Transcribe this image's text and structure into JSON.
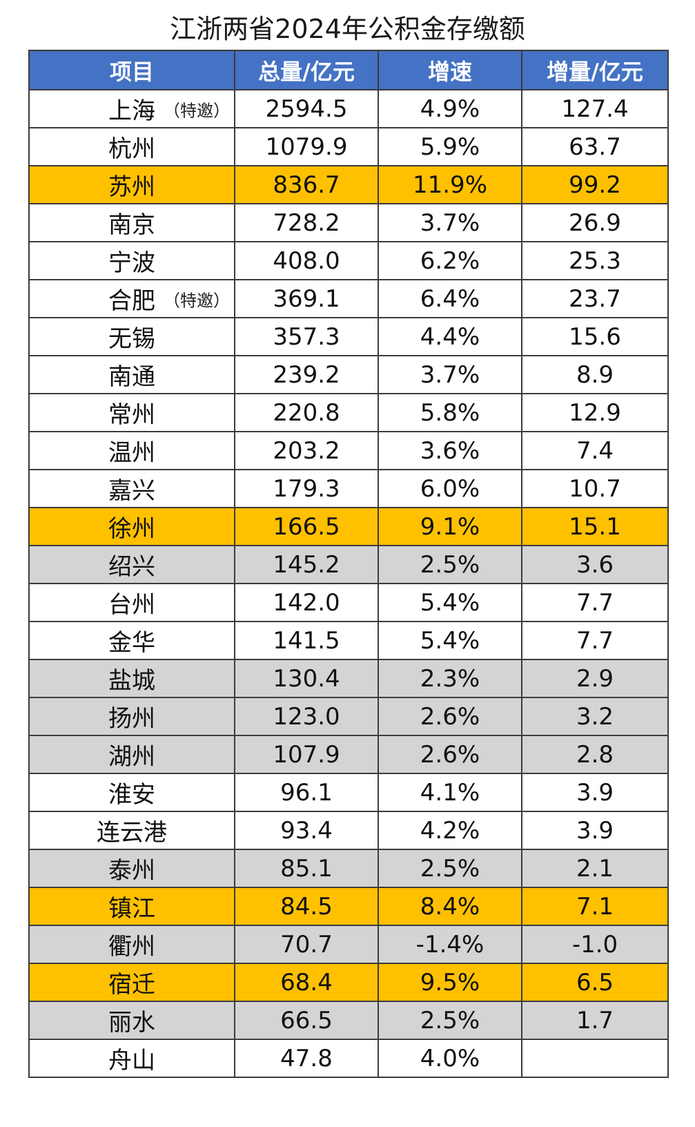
{
  "title": "江浙两省2024年公积金存缴额",
  "headers": [
    "项目",
    "总量/亿元",
    "增速",
    "增量/亿元"
  ],
  "rows": [
    {
      "name": "上海",
      "note": "（特邀）",
      "total": "2594.5",
      "growth": "4.9%",
      "increase": "127.4",
      "highlight": "white"
    },
    {
      "name": "杭州",
      "note": "",
      "total": "1079.9",
      "growth": "5.9%",
      "increase": "63.7",
      "highlight": "white"
    },
    {
      "name": "苏州",
      "note": "",
      "total": "836.7",
      "growth": "11.9%",
      "increase": "99.2",
      "highlight": "orange"
    },
    {
      "name": "南京",
      "note": "",
      "total": "728.2",
      "growth": "3.7%",
      "increase": "26.9",
      "highlight": "white"
    },
    {
      "name": "宁波",
      "note": "",
      "total": "408.0",
      "growth": "6.2%",
      "increase": "25.3",
      "highlight": "white"
    },
    {
      "name": "合肥",
      "note": "（特邀）",
      "total": "369.1",
      "growth": "6.4%",
      "increase": "23.7",
      "highlight": "white"
    },
    {
      "name": "无锡",
      "note": "",
      "total": "357.3",
      "growth": "4.4%",
      "increase": "15.6",
      "highlight": "white"
    },
    {
      "name": "南通",
      "note": "",
      "total": "239.2",
      "growth": "3.7%",
      "increase": "8.9",
      "highlight": "white"
    },
    {
      "name": "常州",
      "note": "",
      "total": "220.8",
      "growth": "5.8%",
      "increase": "12.9",
      "highlight": "white"
    },
    {
      "name": "温州",
      "note": "",
      "total": "203.2",
      "growth": "3.6%",
      "increase": "7.4",
      "highlight": "white"
    },
    {
      "name": "嘉兴",
      "note": "",
      "total": "179.3",
      "growth": "6.0%",
      "increase": "10.7",
      "highlight": "white"
    },
    {
      "name": "徐州",
      "note": "",
      "total": "166.5",
      "growth": "9.1%",
      "increase": "15.1",
      "highlight": "orange"
    },
    {
      "name": "绍兴",
      "note": "",
      "total": "145.2",
      "growth": "2.5%",
      "increase": "3.6",
      "highlight": "gray"
    },
    {
      "name": "台州",
      "note": "",
      "total": "142.0",
      "growth": "5.4%",
      "increase": "7.7",
      "highlight": "white"
    },
    {
      "name": "金华",
      "note": "",
      "total": "141.5",
      "growth": "5.4%",
      "increase": "7.7",
      "highlight": "white"
    },
    {
      "name": "盐城",
      "note": "",
      "total": "130.4",
      "growth": "2.3%",
      "increase": "2.9",
      "highlight": "gray"
    },
    {
      "name": "扬州",
      "note": "",
      "total": "123.0",
      "growth": "2.6%",
      "increase": "3.2",
      "highlight": "gray"
    },
    {
      "name": "湖州",
      "note": "",
      "total": "107.9",
      "growth": "2.6%",
      "increase": "2.8",
      "highlight": "gray"
    },
    {
      "name": "淮安",
      "note": "",
      "total": "96.1",
      "growth": "4.1%",
      "increase": "3.9",
      "highlight": "white"
    },
    {
      "name": "连云港",
      "note": "",
      "total": "93.4",
      "growth": "4.2%",
      "increase": "3.9",
      "highlight": "white"
    },
    {
      "name": "泰州",
      "note": "",
      "total": "85.1",
      "growth": "2.5%",
      "increase": "2.1",
      "highlight": "gray"
    },
    {
      "name": "镇江",
      "note": "",
      "total": "84.5",
      "growth": "8.4%",
      "increase": "7.1",
      "highlight": "orange"
    },
    {
      "name": "衢州",
      "note": "",
      "total": "70.7",
      "growth": "-1.4%",
      "increase": "-1.0",
      "highlight": "gray"
    },
    {
      "name": "宿迁",
      "note": "",
      "total": "68.4",
      "growth": "9.5%",
      "increase": "6.5",
      "highlight": "orange"
    },
    {
      "name": "丽水",
      "note": "",
      "total": "66.5",
      "growth": "2.5%",
      "increase": "1.7",
      "highlight": "gray"
    },
    {
      "name": "舟山",
      "note": "",
      "total": "47.8",
      "growth": "4.0%",
      "increase": "",
      "highlight": "white"
    }
  ],
  "colors": {
    "header": "#4472c4",
    "orange": "#ffc000",
    "gray": "#d4d4d4",
    "white": "#ffffff"
  }
}
